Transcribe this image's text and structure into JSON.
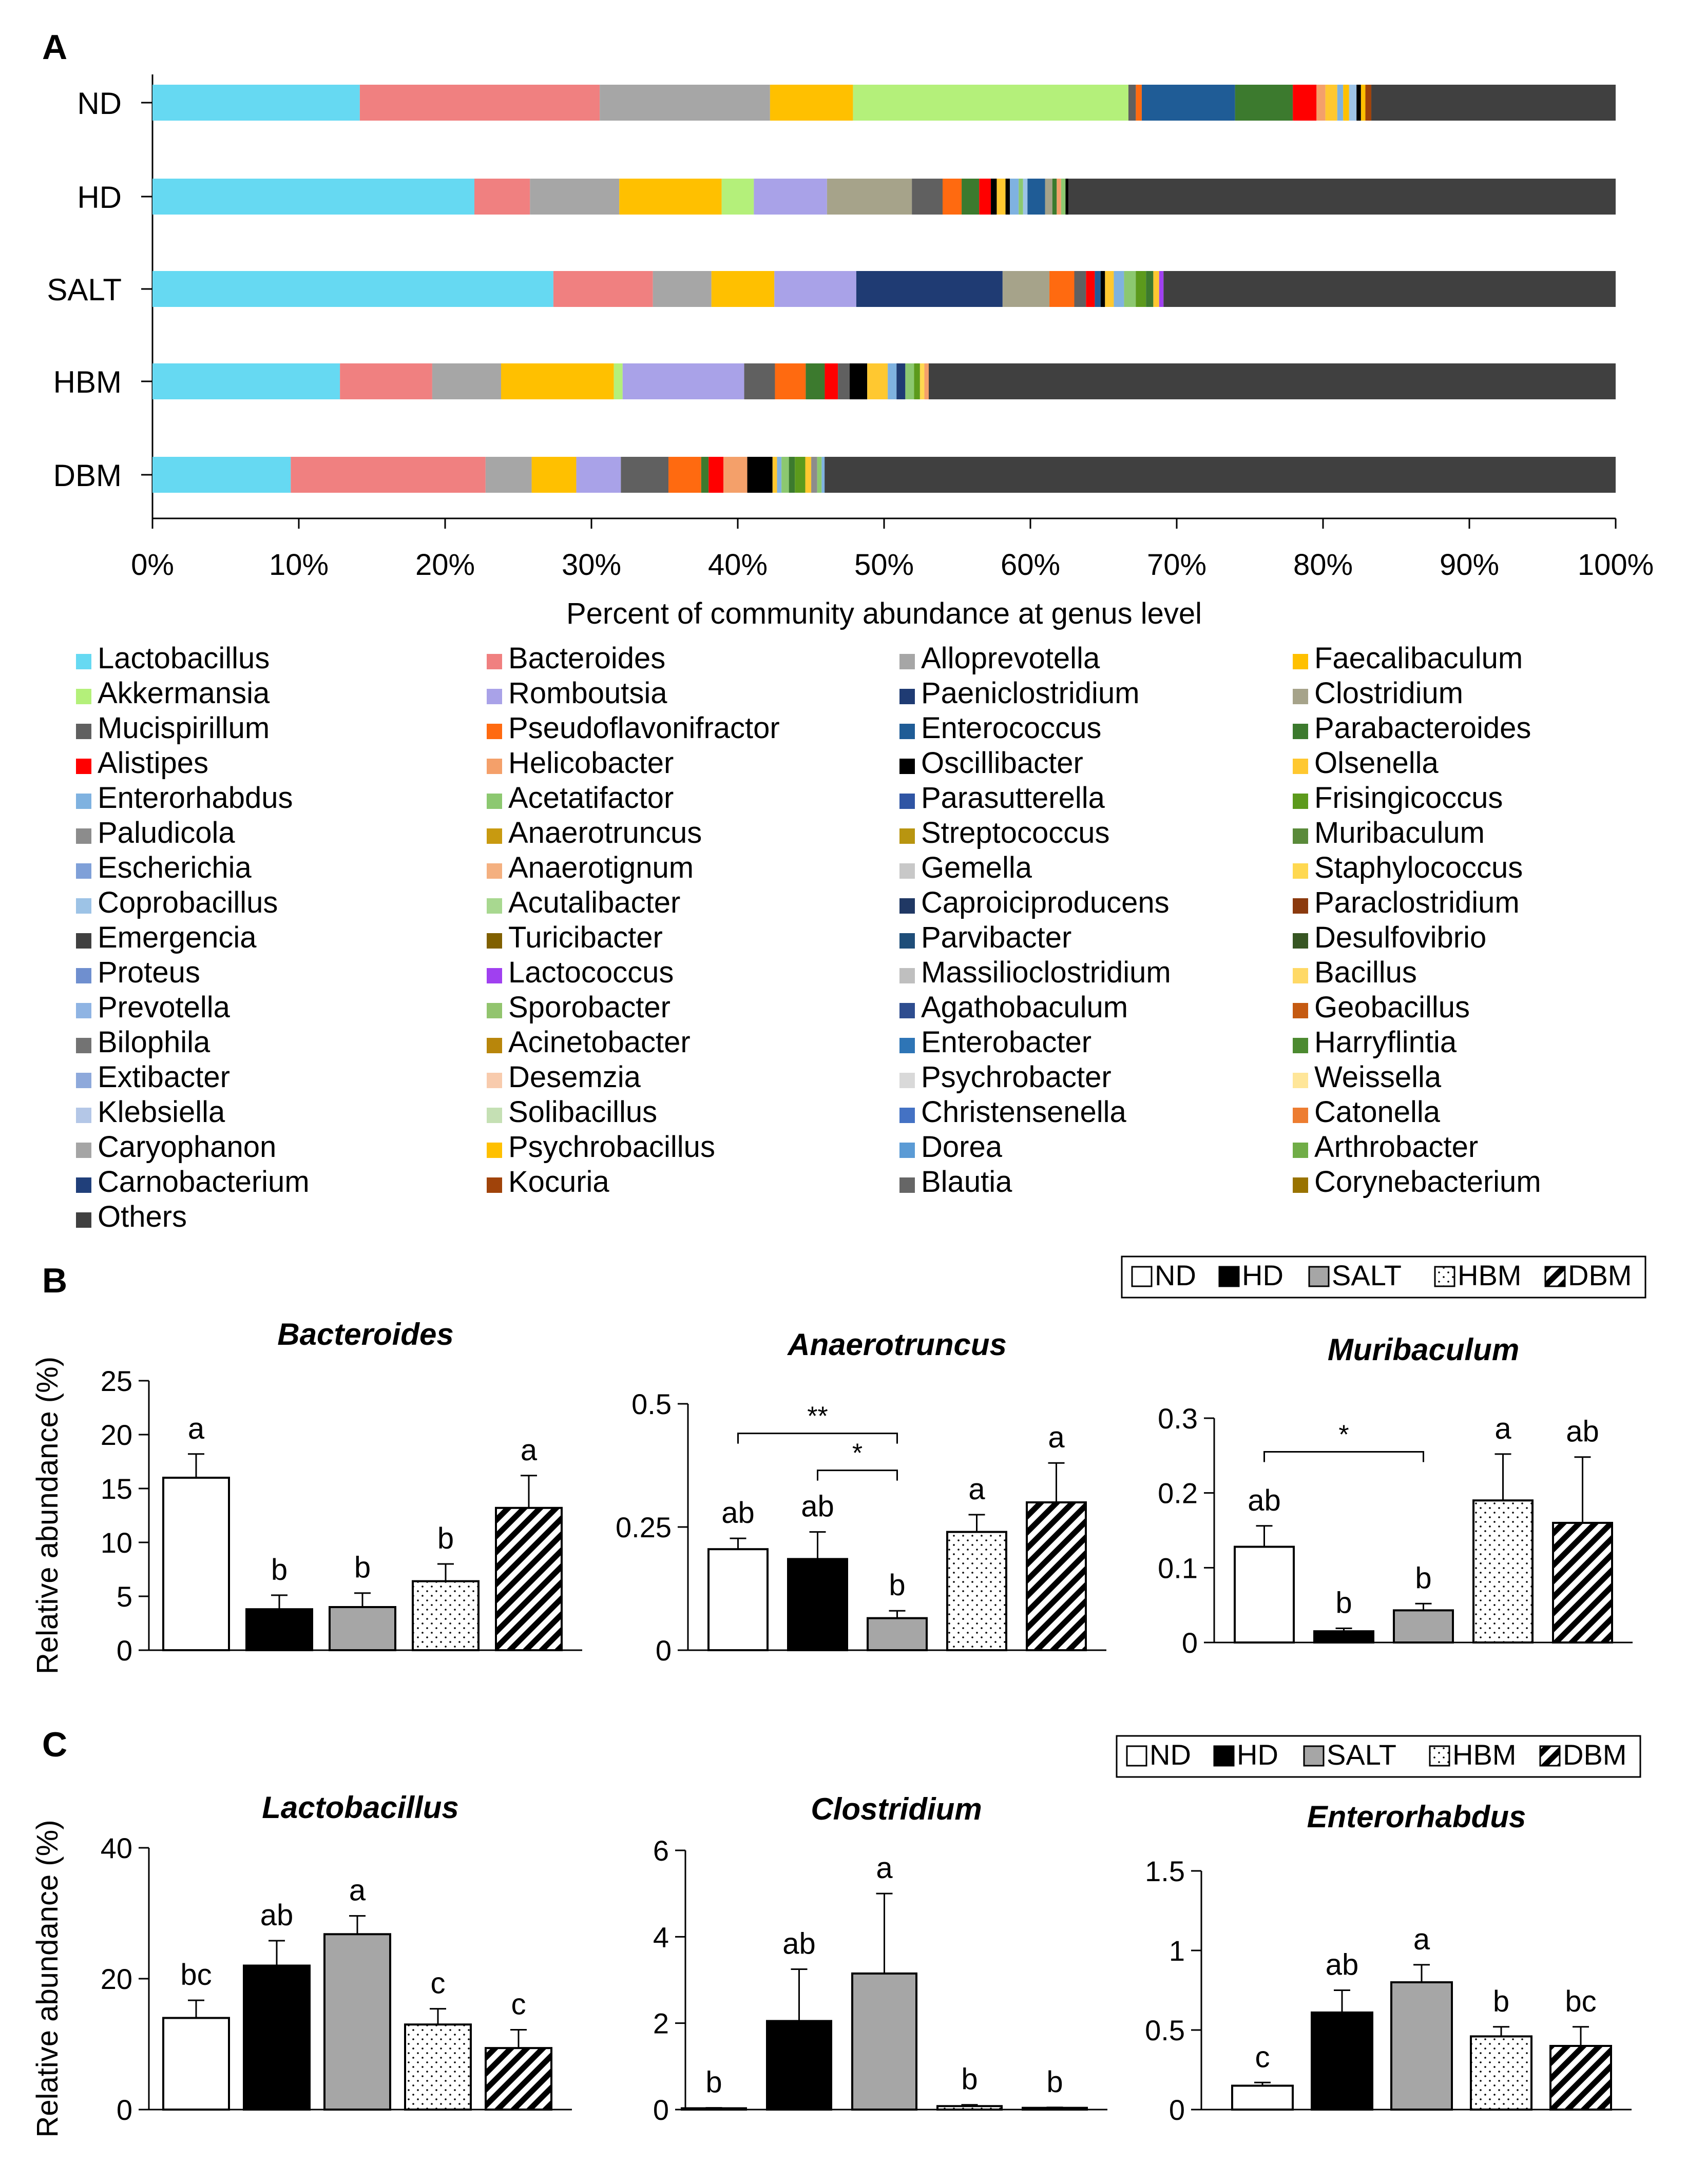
{
  "colors": {
    "Lactobacillus": "#66D9F2",
    "Bacteroides": "#F08080",
    "Alloprevotella": "#A6A6A6",
    "Faecalibaculum": "#FFC000",
    "Akkermansia": "#B4F07A",
    "Romboutsia": "#A9A2E8",
    "Paeniclostridium": "#1F3B73",
    "Clostridium": "#A6A38A",
    "Mucispirillum": "#606060",
    "Pseudoflavonifractor": "#FF6A10",
    "Enterococcus": "#1F5C96",
    "Parabacteroides": "#3C7A2E",
    "Alistipes": "#FF0000",
    "Helicobacter": "#F4A06A",
    "Oscillibacter": "#000000",
    "Olsenella": "#FFC830",
    "Enterorhabdus": "#7FB2E0",
    "Acetatifactor": "#8CC870",
    "Parasutterella": "#2F55A4",
    "Frisingicoccus": "#5C9A1C",
    "Paludicola": "#8C8C8C",
    "Anaerotruncus": "#C89A10",
    "Streptococcus": "#B89510",
    "Muribaculum": "#5A8A3A",
    "Escherichia": "#7FA0D8",
    "Anaerotignum": "#F4B080",
    "Gemella": "#C8C8C8",
    "Staphylococcus": "#FFD850",
    "Coprobacillus": "#9DC3E6",
    "Acutalibacter": "#A8D890",
    "Caproiciproducens": "#203864",
    "Paraclostridium": "#8B3A0E",
    "Emergencia": "#404040",
    "Turicibacter": "#806000",
    "Parvibacter": "#1F4E79",
    "Desulfovibrio": "#375623",
    "Proteus": "#6F8FCF",
    "Lactococcus": "#A040F0",
    "Massilioclostridium": "#BFBFBF",
    "Bacillus": "#FFD966",
    "Prevotella": "#8FB4E3",
    "Sporobacter": "#92C46E",
    "Agathobaculum": "#2E4D8F",
    "Geobacillus": "#C55A11",
    "Bilophila": "#737373",
    "Acinetobacter": "#B8860B",
    "Enterobacter": "#2E75B6",
    "Harryflintia": "#4C8A30",
    "Extibacter": "#8EA9DB",
    "Desemzia": "#F8CBAD",
    "Psychrobacter": "#D9D9D9",
    "Weissella": "#FFE699",
    "Klebsiella": "#B4C7E7",
    "Solibacillus": "#C5E0B4",
    "Christensenella": "#4472C4",
    "Catonella": "#ED7D31",
    "Caryophanon": "#A5A5A5",
    "Psychrobacillus": "#FFC000",
    "Dorea": "#5B9BD5",
    "Arthrobacter": "#70AD47",
    "Carnobacterium": "#203F7A",
    "Kocuria": "#A0430A",
    "Blautia": "#666666",
    "Corynebacterium": "#997300",
    "Others": "#404040"
  },
  "chart_data": [
    {
      "panel": "A",
      "type": "bar",
      "orientation": "horizontal-stacked",
      "xlabel": "Percent of community abundance at genus level",
      "xticks": [
        "0%",
        "10%",
        "20%",
        "30%",
        "40%",
        "50%",
        "60%",
        "70%",
        "80%",
        "90%",
        "100%"
      ],
      "xlim": [
        0,
        100
      ],
      "legend": [
        "Lactobacillus",
        "Bacteroides",
        "Alloprevotella",
        "Faecalibaculum",
        "Akkermansia",
        "Romboutsia",
        "Paeniclostridium",
        "Clostridium",
        "Mucispirillum",
        "Pseudoflavonifractor",
        "Enterococcus",
        "Parabacteroides",
        "Alistipes",
        "Helicobacter",
        "Oscillibacter",
        "Olsenella",
        "Enterorhabdus",
        "Acetatifactor",
        "Parasutterella",
        "Frisingicoccus",
        "Paludicola",
        "Anaerotruncus",
        "Streptococcus",
        "Muribaculum",
        "Escherichia",
        "Anaerotignum",
        "Gemella",
        "Staphylococcus",
        "Coprobacillus",
        "Acutalibacter",
        "Caproiciproducens",
        "Paraclostridium",
        "Emergencia",
        "Turicibacter",
        "Parvibacter",
        "Desulfovibrio",
        "Proteus",
        "Lactococcus",
        "Massilioclostridium",
        "Bacillus",
        "Prevotella",
        "Sporobacter",
        "Agathobaculum",
        "Geobacillus",
        "Bilophila",
        "Acinetobacter",
        "Enterobacter",
        "Harryflintia",
        "Extibacter",
        "Desemzia",
        "Psychrobacter",
        "Weissella",
        "Klebsiella",
        "Solibacillus",
        "Christensenella",
        "Catonella",
        "Caryophanon",
        "Psychrobacillus",
        "Dorea",
        "Arthrobacter",
        "Carnobacterium",
        "Kocuria",
        "Blautia",
        "Corynebacterium",
        "Others"
      ],
      "groups": [
        {
          "name": "ND",
          "segments": [
            [
              "Lactobacillus",
              14.0
            ],
            [
              "Bacteroides",
              16.2
            ],
            [
              "Alloprevotella",
              11.5
            ],
            [
              "Faecalibaculum",
              5.6
            ],
            [
              "Akkermansia",
              18.6
            ],
            [
              "Mucispirillum",
              0.5
            ],
            [
              "Pseudoflavonifractor",
              0.4
            ],
            [
              "Enterococcus",
              6.3
            ],
            [
              "Parabacteroides",
              3.9
            ],
            [
              "Alistipes",
              1.6
            ],
            [
              "Helicobacter",
              0.6
            ],
            [
              "Olsenella",
              0.8
            ],
            [
              "Enterorhabdus",
              0.4
            ],
            [
              "Faecalibaculum",
              0.4
            ],
            [
              "Coprobacillus",
              0.5
            ],
            [
              "Oscillibacter",
              0.3
            ],
            [
              "Psychrobacillus",
              0.3
            ],
            [
              "Kocuria",
              0.4
            ],
            [
              "Others",
              16.5
            ]
          ]
        },
        {
          "name": "HD",
          "segments": [
            [
              "Lactobacillus",
              22.0
            ],
            [
              "Bacteroides",
              3.8
            ],
            [
              "Alloprevotella",
              6.1
            ],
            [
              "Faecalibaculum",
              7.0
            ],
            [
              "Akkermansia",
              2.2
            ],
            [
              "Romboutsia",
              5.0
            ],
            [
              "Clostridium",
              5.8
            ],
            [
              "Mucispirillum",
              2.1
            ],
            [
              "Pseudoflavonifractor",
              1.3
            ],
            [
              "Parabacteroides",
              1.2
            ],
            [
              "Alistipes",
              0.8
            ],
            [
              "Oscillibacter",
              0.4
            ],
            [
              "Olsenella",
              0.6
            ],
            [
              "Oscillibacter",
              0.3
            ],
            [
              "Enterorhabdus",
              0.6
            ],
            [
              "Acetatifactor",
              0.3
            ],
            [
              "Coprobacillus",
              0.3
            ],
            [
              "Enterococcus",
              1.2
            ],
            [
              "Clostridium",
              0.5
            ],
            [
              "Parabacteroides",
              0.3
            ],
            [
              "Helicobacter",
              0.3
            ],
            [
              "Acetatifactor",
              0.3
            ],
            [
              "Oscillibacter",
              0.2
            ],
            [
              "Others",
              37.4
            ]
          ]
        },
        {
          "name": "SALT",
          "segments": [
            [
              "Lactobacillus",
              27.4
            ],
            [
              "Bacteroides",
              6.8
            ],
            [
              "Alloprevotella",
              4.0
            ],
            [
              "Faecalibaculum",
              4.3
            ],
            [
              "Romboutsia",
              5.6
            ],
            [
              "Paeniclostridium",
              10.0
            ],
            [
              "Clostridium",
              3.2
            ],
            [
              "Pseudoflavonifractor",
              1.7
            ],
            [
              "Mucispirillum",
              0.8
            ],
            [
              "Alistipes",
              0.6
            ],
            [
              "Enterococcus",
              0.4
            ],
            [
              "Oscillibacter",
              0.3
            ],
            [
              "Olsenella",
              0.6
            ],
            [
              "Enterorhabdus",
              0.7
            ],
            [
              "Acetatifactor",
              0.8
            ],
            [
              "Frisingicoccus",
              0.7
            ],
            [
              "Parabacteroides",
              0.5
            ],
            [
              "Olsenella",
              0.4
            ],
            [
              "Lactococcus",
              0.3
            ],
            [
              "Others",
              30.9
            ]
          ]
        },
        {
          "name": "HBM",
          "segments": [
            [
              "Lactobacillus",
              12.8
            ],
            [
              "Bacteroides",
              6.3
            ],
            [
              "Alloprevotella",
              4.7
            ],
            [
              "Faecalibaculum",
              7.7
            ],
            [
              "Akkermansia",
              0.6
            ],
            [
              "Romboutsia",
              8.3
            ],
            [
              "Mucispirillum",
              2.1
            ],
            [
              "Pseudoflavonifractor",
              2.1
            ],
            [
              "Parabacteroides",
              1.3
            ],
            [
              "Alistipes",
              0.9
            ],
            [
              "Mucispirillum",
              0.8
            ],
            [
              "Oscillibacter",
              1.2
            ],
            [
              "Olsenella",
              1.4
            ],
            [
              "Enterorhabdus",
              0.6
            ],
            [
              "Paeniclostridium",
              0.6
            ],
            [
              "Acetatifactor",
              0.6
            ],
            [
              "Frisingicoccus",
              0.4
            ],
            [
              "Staphylococcus",
              0.3
            ],
            [
              "Helicobacter",
              0.3
            ],
            [
              "Others",
              46.9
            ]
          ]
        },
        {
          "name": "DBM",
          "segments": [
            [
              "Lactobacillus",
              9.3
            ],
            [
              "Bacteroides",
              13.1
            ],
            [
              "Alloprevotella",
              3.1
            ],
            [
              "Faecalibaculum",
              3.0
            ],
            [
              "Romboutsia",
              3.0
            ],
            [
              "Mucispirillum",
              3.2
            ],
            [
              "Pseudoflavonifractor",
              2.2
            ],
            [
              "Parabacteroides",
              0.5
            ],
            [
              "Alistipes",
              1.0
            ],
            [
              "Helicobacter",
              1.6
            ],
            [
              "Oscillibacter",
              1.7
            ],
            [
              "Olsenella",
              0.3
            ],
            [
              "Enterorhabdus",
              0.3
            ],
            [
              "Acetatifactor",
              0.5
            ],
            [
              "Parabacteroides",
              0.4
            ],
            [
              "Frisingicoccus",
              0.7
            ],
            [
              "Olsenella",
              0.4
            ],
            [
              "Paludicola",
              0.4
            ],
            [
              "Acetatifactor",
              0.3
            ],
            [
              "Enterorhabdus",
              0.2
            ],
            [
              "Others",
              53.2
            ]
          ]
        }
      ]
    },
    {
      "panel": "B",
      "type": "bar",
      "title": "Bacteroides",
      "ylabel": "Relative abundance (%)",
      "ylim": [
        0,
        25
      ],
      "yticks": [
        "0",
        "5",
        "10",
        "15",
        "20",
        "25"
      ],
      "categories": [
        "ND",
        "HD",
        "SALT",
        "HBM",
        "DBM"
      ],
      "values": [
        16.0,
        3.8,
        4.0,
        6.4,
        13.2
      ],
      "errors": [
        2.2,
        1.3,
        1.3,
        1.6,
        3.0
      ],
      "letters": [
        "a",
        "b",
        "b",
        "b",
        "a"
      ],
      "brackets": []
    },
    {
      "panel": "B",
      "type": "bar",
      "title": "Anaerotruncus",
      "ylim": [
        0,
        0.5
      ],
      "yticks": [
        "0",
        "0.25",
        "0.5"
      ],
      "categories": [
        "ND",
        "HD",
        "SALT",
        "HBM",
        "DBM"
      ],
      "values": [
        0.205,
        0.185,
        0.065,
        0.24,
        0.3
      ],
      "errors": [
        0.022,
        0.055,
        0.015,
        0.035,
        0.08
      ],
      "letters": [
        "ab",
        "ab",
        "b",
        "a",
        "a"
      ],
      "brackets": [
        {
          "from": 0,
          "to": 2,
          "label": "**",
          "level": 0.44
        },
        {
          "from": 1,
          "to": 2,
          "label": "*",
          "level": 0.365
        }
      ]
    },
    {
      "panel": "B",
      "type": "bar",
      "title": "Muribaculum",
      "ylim": [
        0,
        0.3
      ],
      "yticks": [
        "0",
        "0.1",
        "0.2",
        "0.3"
      ],
      "categories": [
        "ND",
        "HD",
        "SALT",
        "HBM",
        "DBM"
      ],
      "values": [
        0.128,
        0.015,
        0.043,
        0.19,
        0.16
      ],
      "errors": [
        0.028,
        0.004,
        0.009,
        0.062,
        0.088
      ],
      "letters": [
        "ab",
        "b",
        "b",
        "a",
        "ab"
      ],
      "brackets": [
        {
          "from": 0,
          "to": 2,
          "label": "*",
          "level": 0.255
        }
      ]
    },
    {
      "panel": "C",
      "type": "bar",
      "title": "Lactobacillus",
      "ylabel": "Relative abundance (%)",
      "ylim": [
        0,
        40
      ],
      "yticks": [
        "0",
        "20",
        "40"
      ],
      "categories": [
        "ND",
        "HD",
        "SALT",
        "HBM",
        "DBM"
      ],
      "values": [
        14.0,
        22.0,
        26.8,
        13.0,
        9.4
      ],
      "errors": [
        2.7,
        3.8,
        2.8,
        2.4,
        2.8
      ],
      "letters": [
        "bc",
        "ab",
        "a",
        "c",
        "c"
      ],
      "brackets": []
    },
    {
      "panel": "C",
      "type": "bar",
      "title": "Clostridium",
      "ylim": [
        0,
        6
      ],
      "yticks": [
        "0",
        "2",
        "4",
        "6"
      ],
      "categories": [
        "ND",
        "HD",
        "SALT",
        "HBM",
        "DBM"
      ],
      "values": [
        0.03,
        2.05,
        3.15,
        0.08,
        0.04
      ],
      "errors": [
        0.01,
        1.2,
        1.85,
        0.03,
        0.01
      ],
      "letters": [
        "b",
        "ab",
        "a",
        "b",
        "b"
      ],
      "brackets": []
    },
    {
      "panel": "C",
      "type": "bar",
      "title": "Enterorhabdus",
      "ylim": [
        0,
        1.5
      ],
      "yticks": [
        "0",
        "0.5",
        "1",
        "1.5"
      ],
      "categories": [
        "ND",
        "HD",
        "SALT",
        "HBM",
        "DBM"
      ],
      "values": [
        0.15,
        0.61,
        0.8,
        0.46,
        0.4
      ],
      "errors": [
        0.02,
        0.14,
        0.11,
        0.06,
        0.12
      ],
      "letters": [
        "c",
        "ab",
        "a",
        "b",
        "bc"
      ],
      "brackets": []
    }
  ],
  "labels": {
    "panelA": "A",
    "panelB": "B",
    "panelC": "C"
  },
  "groupLegend": [
    "ND",
    "HD",
    "SALT",
    "HBM",
    "DBM"
  ]
}
